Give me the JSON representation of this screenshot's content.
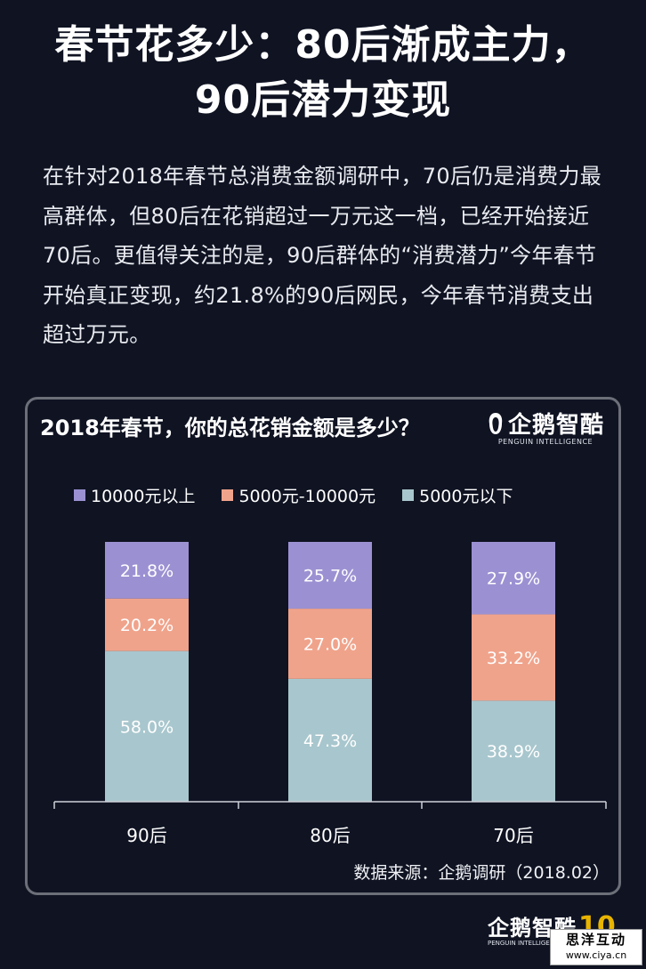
{
  "title": {
    "line1": "春节花多少：80后渐成主力，",
    "line2": "90后潜力变现"
  },
  "intro": "在针对2018年春节总消费金额调研中，70后仍是消费力最高群体，但80后在花销超过一万元这一档，已经开始接近70后。更值得关注的是，90后群体的“消费潜力”今年春节开始真正变现，约21.8%的90后网民，今年春节消费支出超过万元。",
  "logo": {
    "cn": "企鹅智酷",
    "en": "PENGUIN INTELLIGENCE"
  },
  "source": "数据来源：企鹅调研（2018.02）",
  "footer": {
    "page_number": "10"
  },
  "watermark": {
    "name": "思洋互动",
    "url": "www.ciya.cn"
  },
  "colors": {
    "top": "#9b91d2",
    "middle": "#f0a38b",
    "bottom": "#a8c6cd",
    "background": "#0f1322"
  },
  "chart_data": {
    "type": "bar",
    "stacked": true,
    "title": "2018年春节，你的总花销金额是多少？",
    "categories": [
      "90后",
      "80后",
      "70后"
    ],
    "series": [
      {
        "name": "5000元以下",
        "values": [
          58.0,
          47.3,
          38.9
        ],
        "labels": [
          "58.0%",
          "47.3%",
          "38.9%"
        ]
      },
      {
        "name": "5000元-10000元",
        "values": [
          20.2,
          27.0,
          33.2
        ],
        "labels": [
          "20.2%",
          "27.0%",
          "33.2%"
        ]
      },
      {
        "name": "10000元以上",
        "values": [
          21.8,
          25.7,
          27.9
        ],
        "labels": [
          "21.8%",
          "25.7%",
          "27.9%"
        ]
      }
    ],
    "legend_order": [
      "10000元以上",
      "5000元-10000元",
      "5000元以下"
    ],
    "ylim": [
      0,
      100
    ],
    "unit": "%"
  }
}
